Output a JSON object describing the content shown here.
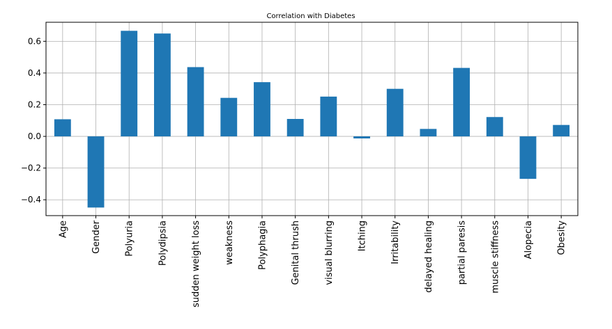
{
  "chart_data": {
    "type": "bar",
    "title": "Correlation with Diabetes",
    "xlabel": "",
    "ylabel": "",
    "categories": [
      "Age",
      "Gender",
      "Polyuria",
      "Polydipsia",
      "sudden weight loss",
      "weakness",
      "Polyphagia",
      "Genital thrush",
      "visual blurring",
      "Itching",
      "Irritability",
      "delayed healing",
      "partial paresis",
      "muscle stiffness",
      "Alopecia",
      "Obesity"
    ],
    "values": [
      0.108,
      -0.449,
      0.666,
      0.649,
      0.437,
      0.243,
      0.342,
      0.11,
      0.251,
      -0.013,
      0.3,
      0.047,
      0.432,
      0.122,
      -0.268,
      0.072
    ],
    "ylim": [
      -0.5,
      0.72
    ],
    "yticks": [
      -0.4,
      -0.2,
      0.0,
      0.2,
      0.4,
      0.6
    ],
    "ytick_labels": [
      "−0.4",
      "−0.2",
      "0.0",
      "0.2",
      "0.4",
      "0.6"
    ],
    "grid": true,
    "bar_color": "#1f77b4"
  }
}
